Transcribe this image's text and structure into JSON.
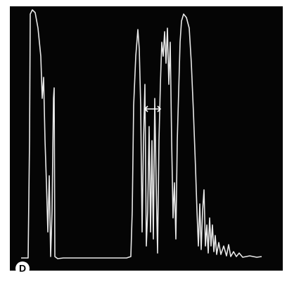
{
  "panel": {
    "label": "D"
  }
}
